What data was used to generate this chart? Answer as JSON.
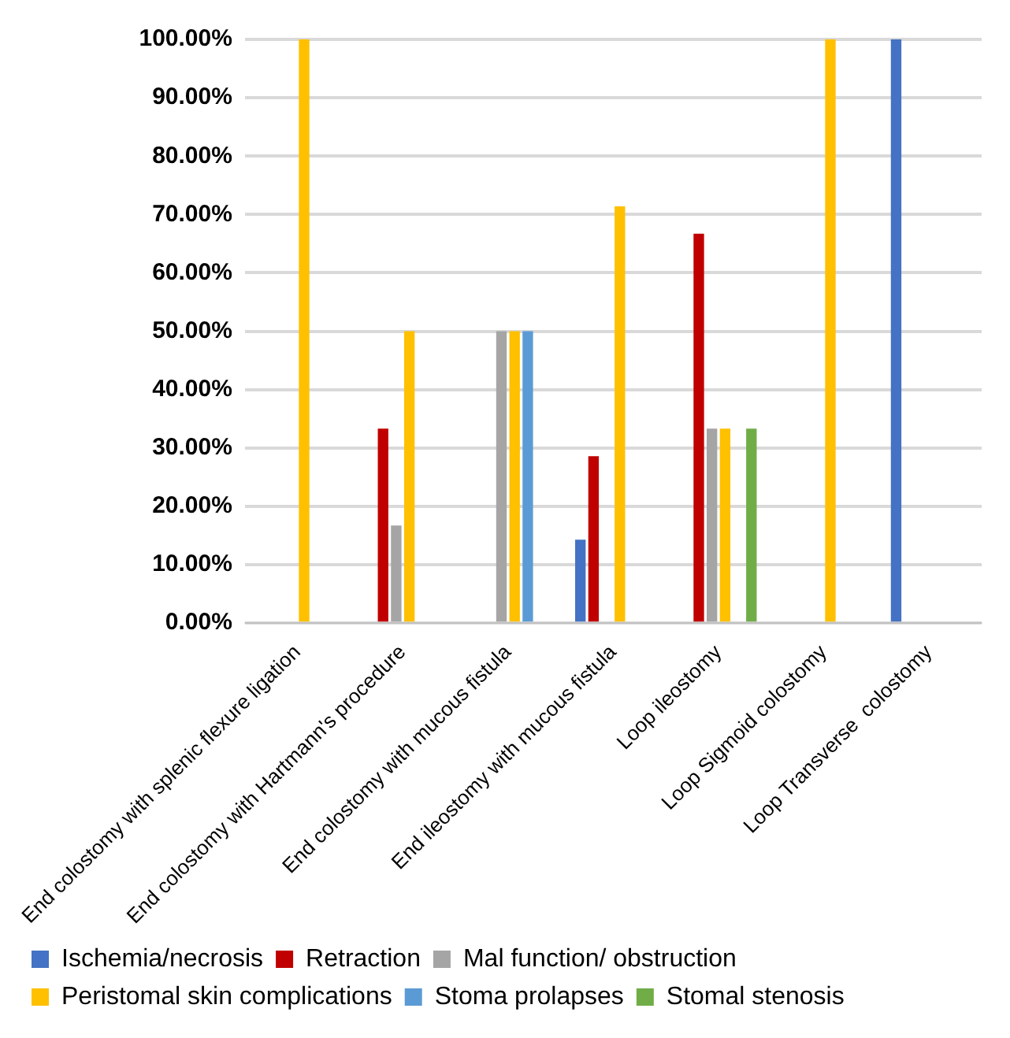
{
  "chart_data": {
    "type": "bar",
    "categories": [
      "End colostomy with splenic flexure ligation",
      "End colostomy with Hartmann's procedure",
      "End colostomy with mucous fistula",
      "End ileostomy with mucous fistula",
      "Loop ileostomy",
      "Loop Sigmoid colostomy",
      "Loop Transverse  colostomy"
    ],
    "series": [
      {
        "name": "Ischemia/necrosis",
        "color": "#4472c4",
        "values": [
          0,
          0,
          0,
          14.3,
          0,
          0,
          100
        ]
      },
      {
        "name": "Retraction",
        "color": "#c00000",
        "values": [
          0,
          33.3,
          0,
          28.6,
          66.7,
          0,
          0
        ]
      },
      {
        "name": "Mal function/ obstruction",
        "color": "#a5a5a5",
        "values": [
          0,
          16.7,
          50,
          0,
          33.3,
          0,
          0
        ]
      },
      {
        "name": "Peristomal skin complications",
        "color": "#ffc000",
        "values": [
          100,
          50,
          50,
          71.4,
          33.3,
          100,
          0
        ]
      },
      {
        "name": "Stoma prolapses",
        "color": "#5b9bd5",
        "values": [
          0,
          0,
          50,
          0,
          0,
          0,
          0
        ]
      },
      {
        "name": "Stomal stenosis",
        "color": "#70ad47",
        "values": [
          0,
          0,
          0,
          0,
          33.3,
          0,
          0
        ]
      }
    ],
    "ylim": [
      0,
      100
    ],
    "yticks": [
      {
        "value": 0,
        "label": "0.00%"
      },
      {
        "value": 10,
        "label": "10.00%"
      },
      {
        "value": 20,
        "label": "20.00%"
      },
      {
        "value": 30,
        "label": "30.00%"
      },
      {
        "value": 40,
        "label": "40.00%"
      },
      {
        "value": 50,
        "label": "50.00%"
      },
      {
        "value": 60,
        "label": "60.00%"
      },
      {
        "value": 70,
        "label": "70.00%"
      },
      {
        "value": 80,
        "label": "80.00%"
      },
      {
        "value": 90,
        "label": "90.00%"
      },
      {
        "value": 100,
        "label": "100.00%"
      }
    ],
    "grid": "y",
    "legend": "bottom"
  }
}
